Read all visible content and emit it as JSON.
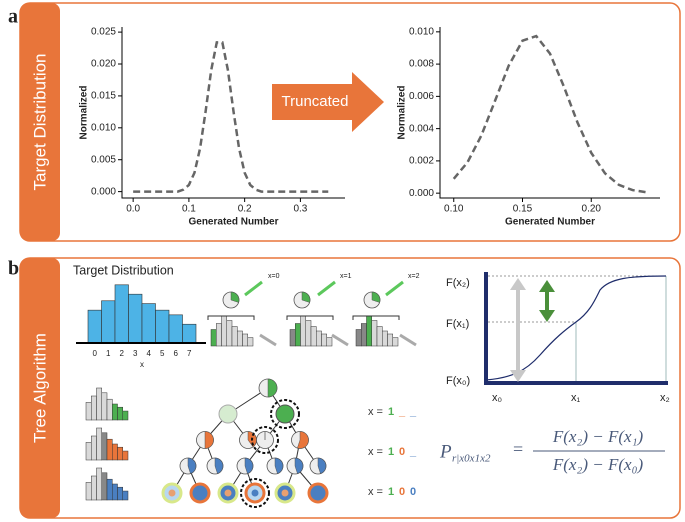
{
  "panel_labels": [
    "a",
    "b"
  ],
  "sidebars": [
    "Target Distribution",
    "Tree Algorithm"
  ],
  "arrow_label": "Truncated",
  "chart_data": [
    {
      "type": "line",
      "color": "#666666",
      "dashed": true,
      "xlabel": "Generated Number",
      "ylabel": "Normalized",
      "x": [
        0,
        0.01,
        0.02,
        0.03,
        0.04,
        0.05,
        0.06,
        0.07,
        0.08,
        0.09,
        0.1,
        0.11,
        0.12,
        0.13,
        0.14,
        0.15,
        0.16,
        0.17,
        0.18,
        0.19,
        0.2,
        0.21,
        0.22,
        0.23,
        0.24,
        0.25,
        0.26,
        0.27,
        0.28,
        0.29,
        0.3,
        0.31,
        0.32,
        0.33,
        0.34,
        0.35
      ],
      "values": [
        0,
        0,
        0,
        0,
        0,
        0,
        0,
        0,
        0,
        0.0003,
        0.00105,
        0.00296,
        0.00677,
        0.01258,
        0.01902,
        0.02339,
        0.02339,
        0.01902,
        0.01258,
        0.00677,
        0.00296,
        0.00105,
        0.0003,
        0,
        0,
        0,
        0,
        0,
        0,
        0,
        0,
        0,
        0,
        0,
        0,
        0
      ],
      "xlim": [
        -0.02,
        0.38
      ],
      "ylim": [
        -0.001,
        0.0258
      ],
      "xticks": [
        {
          "value": 0,
          "label": "0.0"
        },
        0.1,
        0.2,
        0.3
      ],
      "yticks": [
        {
          "value": 0,
          "label": "0.000"
        },
        0.005,
        {
          "value": 0.01,
          "label": "0.010"
        },
        0.015,
        {
          "value": 0.02,
          "label": "0.020"
        },
        0.025
      ]
    },
    {
      "type": "line",
      "color": "#666666",
      "dashed": true,
      "xlabel": "Generated Number",
      "ylabel": "Normalized",
      "x": [
        0.1,
        0.11,
        0.12,
        0.13,
        0.14,
        0.15,
        0.16,
        0.17,
        0.18,
        0.19,
        0.2,
        0.21,
        0.22,
        0.23,
        0.24
      ],
      "values": [
        0.00089,
        0.00191,
        0.00356,
        0.00572,
        0.00791,
        0.00945,
        0.00974,
        0.00865,
        0.00663,
        0.00438,
        0.0025,
        0.00123,
        0.00052,
        0.00019,
        6e-05
      ],
      "xlim": [
        0.09,
        0.25
      ],
      "ylim": [
        -0.0003,
        0.0103
      ],
      "xticks": [
        {
          "value": 0.1,
          "label": "0.10"
        },
        0.15,
        {
          "value": 0.2,
          "label": "0.20"
        }
      ],
      "yticks": [
        {
          "value": 0,
          "label": "0.000"
        },
        0.002,
        0.004,
        0.006,
        0.008,
        {
          "value": 0.01,
          "label": "0.010"
        }
      ]
    },
    {
      "type": "bar",
      "title": "Target Distribution",
      "xlabel": "x",
      "color": "#4db3e6",
      "categories": [
        "0",
        "1",
        "2",
        "3",
        "4",
        "5",
        "6",
        "7"
      ],
      "values": [
        3.5,
        4.5,
        6.2,
        5.2,
        4.2,
        3.5,
        3,
        2
      ],
      "ylim": [
        0,
        6.5
      ]
    }
  ],
  "tree": {
    "branch_labels": [
      "x=0",
      "x=1",
      "x=2"
    ],
    "results": [
      [
        {
          "text": "x =",
          "color": "#333333"
        },
        {
          "text": "1",
          "color": "#4caf50"
        },
        {
          "text": "_",
          "color": "#e8753a"
        },
        {
          "text": "_",
          "color": "#4a7fc1"
        }
      ],
      [
        {
          "text": "x =",
          "color": "#333333"
        },
        {
          "text": "1",
          "color": "#4caf50"
        },
        {
          "text": "0",
          "color": "#e8753a"
        },
        {
          "text": "_",
          "color": "#4a7fc1"
        }
      ],
      [
        {
          "text": "x =",
          "color": "#333333"
        },
        {
          "text": "1",
          "color": "#4caf50"
        },
        {
          "text": "0",
          "color": "#e8753a"
        },
        {
          "text": "0",
          "color": "#4a7fc1"
        }
      ]
    ]
  },
  "cdf": {
    "y_labels": [
      "F(x₂)",
      "F(x₁)",
      "F(x₀)"
    ],
    "x_labels": [
      "x₀",
      "x₁",
      "x₂"
    ]
  },
  "formula": {
    "symbol": "P",
    "subscript": "r|x0x1x2",
    "equals": "=",
    "numerator": "F(x₂) − F(x₁)",
    "denominator": "F(x₂) − F(x₀)"
  }
}
